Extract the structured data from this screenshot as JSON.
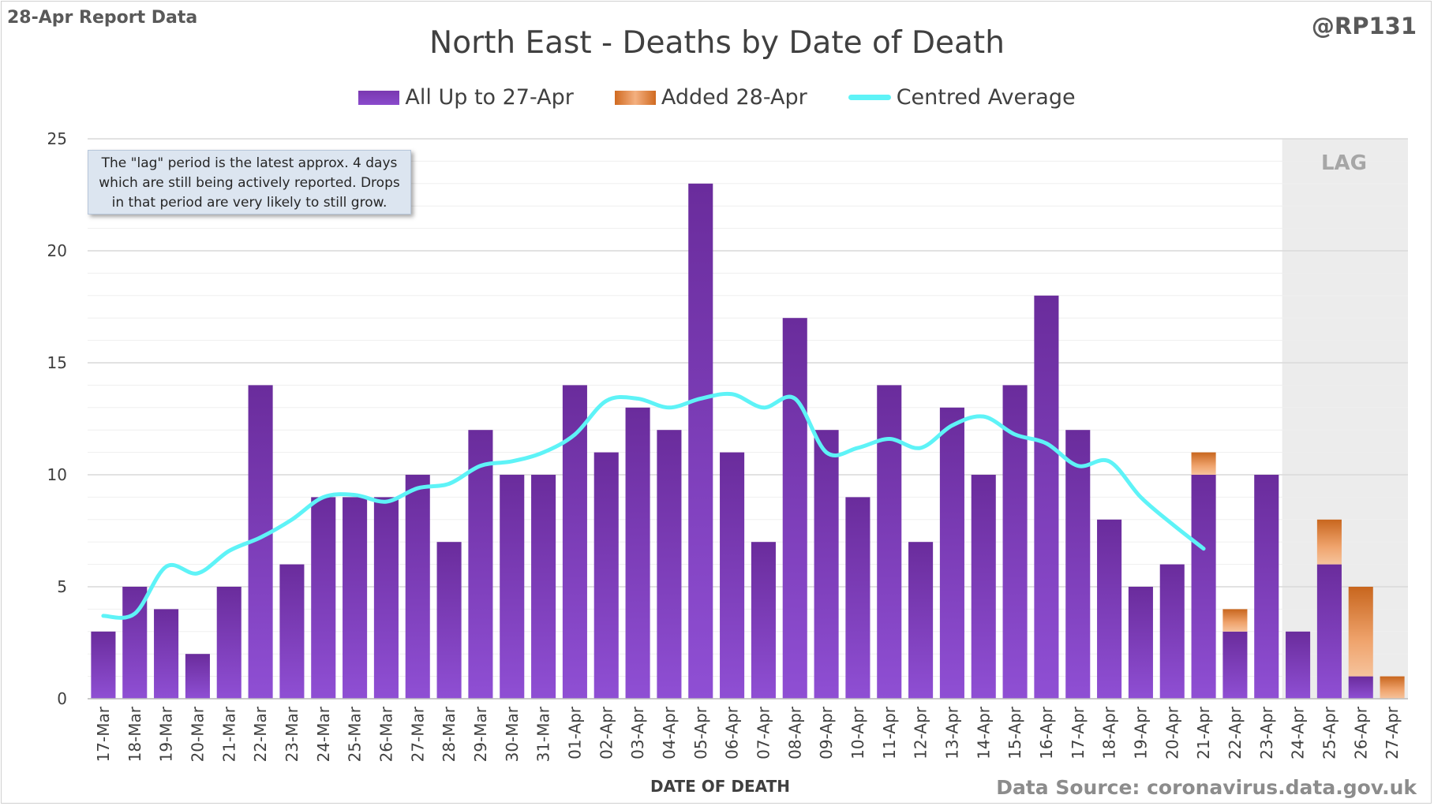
{
  "report_label": "28-Apr Report Data",
  "handle": "@RP131",
  "note": {
    "lines": [
      "The \"lag\" period is the latest approx. 4 days",
      "which are still being actively reported.  Drops",
      "in that period are very likely to still grow."
    ]
  },
  "lag_label": "LAG",
  "source": "Data Source: coronavirus.data.gov.uk",
  "colors": {
    "existing": "#7030a0",
    "added": "#e07a30",
    "average": "#5ef3f7",
    "lag_shade": "#ececec",
    "grid": "#d9d9d9"
  },
  "chart_data": {
    "type": "bar",
    "stacked": true,
    "title": "North East - Deaths by Date of Death",
    "xlabel": "DATE OF DEATH",
    "ylabel": "",
    "ylim": [
      0,
      25
    ],
    "yticks": [
      0,
      5,
      10,
      15,
      20,
      25
    ],
    "grid": true,
    "legend_position": "top-center",
    "categories": [
      "17-Mar",
      "18-Mar",
      "19-Mar",
      "20-Mar",
      "21-Mar",
      "22-Mar",
      "23-Mar",
      "24-Mar",
      "25-Mar",
      "26-Mar",
      "27-Mar",
      "28-Mar",
      "29-Mar",
      "30-Mar",
      "31-Mar",
      "01-Apr",
      "02-Apr",
      "03-Apr",
      "04-Apr",
      "05-Apr",
      "06-Apr",
      "07-Apr",
      "08-Apr",
      "09-Apr",
      "10-Apr",
      "11-Apr",
      "12-Apr",
      "13-Apr",
      "14-Apr",
      "15-Apr",
      "16-Apr",
      "17-Apr",
      "18-Apr",
      "19-Apr",
      "20-Apr",
      "21-Apr",
      "22-Apr",
      "23-Apr",
      "24-Apr",
      "25-Apr",
      "26-Apr",
      "27-Apr"
    ],
    "series": [
      {
        "name": "All Up to 27-Apr",
        "type": "bar",
        "values": [
          3,
          5,
          4,
          2,
          5,
          14,
          6,
          9,
          9,
          9,
          10,
          7,
          12,
          10,
          10,
          14,
          11,
          13,
          12,
          23,
          11,
          7,
          17,
          12,
          9,
          14,
          7,
          13,
          10,
          14,
          18,
          12,
          8,
          5,
          6,
          10,
          3,
          10,
          3,
          6,
          1,
          0
        ]
      },
      {
        "name": "Added 28-Apr",
        "type": "bar",
        "values": [
          0,
          0,
          0,
          0,
          0,
          0,
          0,
          0,
          0,
          0,
          0,
          0,
          0,
          0,
          0,
          0,
          0,
          0,
          0,
          0,
          0,
          0,
          0,
          0,
          0,
          0,
          0,
          0,
          0,
          0,
          0,
          0,
          0,
          0,
          0,
          1,
          1,
          0,
          0,
          2,
          4,
          1
        ]
      },
      {
        "name": "Centred Average",
        "type": "line",
        "values": [
          3.7,
          3.8,
          5.9,
          5.6,
          6.6,
          7.2,
          8.0,
          9.0,
          9.1,
          8.8,
          9.4,
          9.6,
          10.4,
          10.6,
          11.0,
          11.8,
          13.3,
          13.4,
          13.0,
          13.4,
          13.6,
          13.0,
          13.4,
          11.0,
          11.2,
          11.6,
          11.2,
          12.2,
          12.6,
          11.8,
          11.4,
          10.4,
          10.6,
          9.0,
          7.8,
          6.7,
          null,
          null,
          null,
          null,
          null,
          null
        ]
      }
    ],
    "lag_period": [
      "24-Apr",
      "27-Apr"
    ]
  }
}
